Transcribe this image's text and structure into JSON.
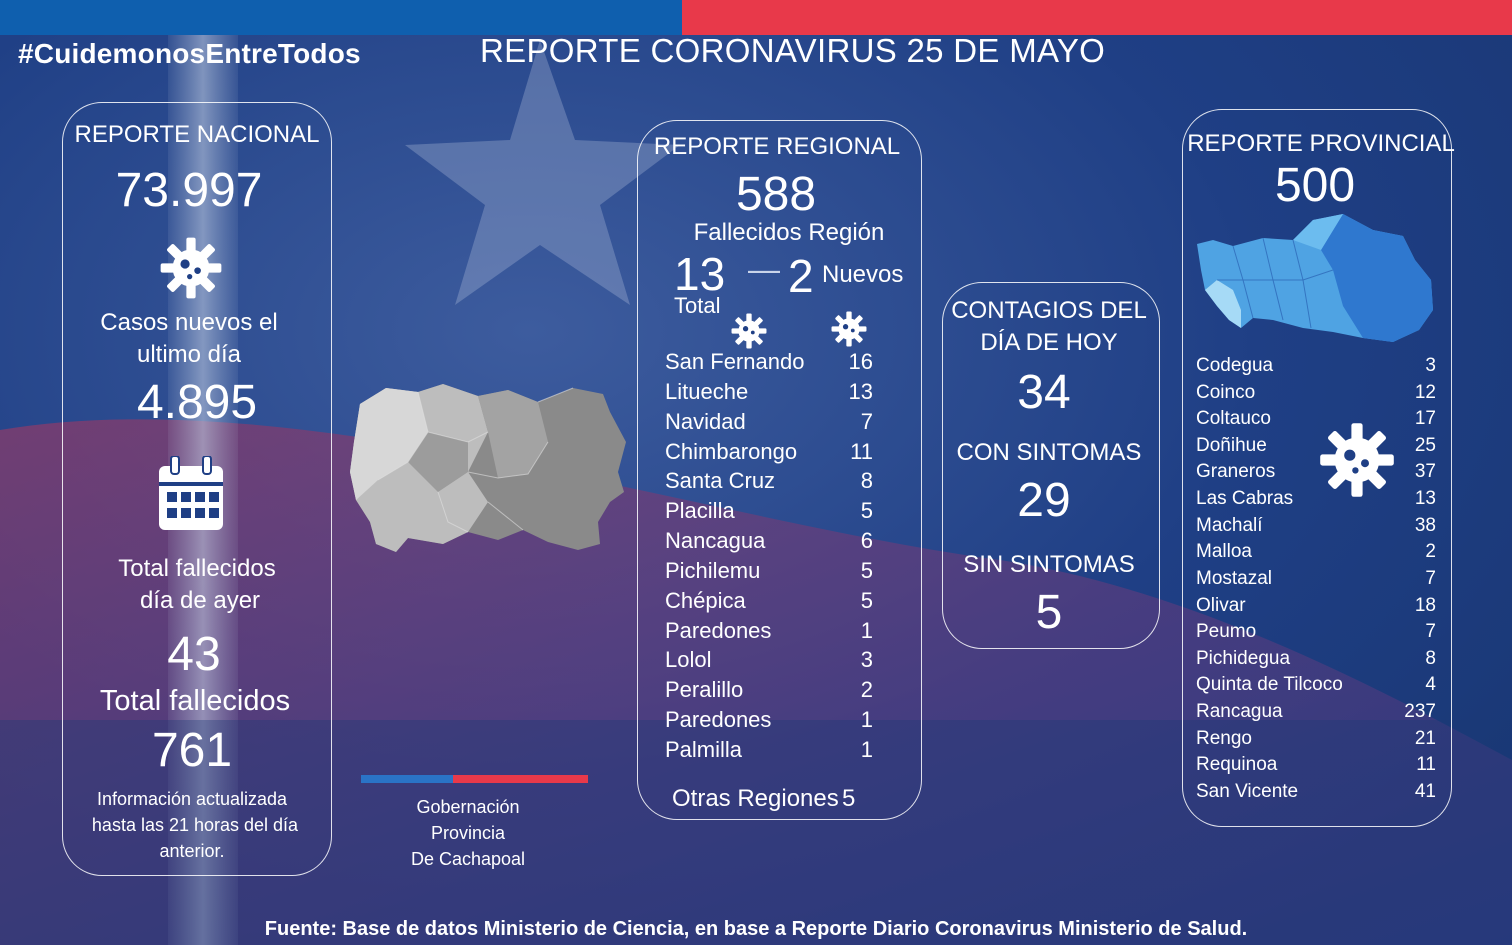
{
  "hashtag": "#CuidemonosEntreTodos",
  "title": "REPORTE CORONAVIRUS 25 DE MAYO",
  "nacional": {
    "heading": "REPORTE NACIONAL",
    "total": "73.997",
    "new_label_1": "Casos nuevos el",
    "new_label_2": "ultimo día",
    "new_cases": "4.895",
    "deaths_yesterday_label_1": "Total fallecidos",
    "deaths_yesterday_label_2": "día de ayer",
    "deaths_yesterday": "43",
    "deaths_total_label": "Total fallecidos",
    "deaths_total": "761",
    "note_1": "Información actualizada",
    "note_2": "hasta las 21 horas del día",
    "note_3": "anterior."
  },
  "regional": {
    "heading": "REPORTE REGIONAL",
    "total": "588",
    "fallecidos_label": "Fallecidos Región",
    "fallecidos_total": "13",
    "dash": "—",
    "fallecidos_nuevos": "2",
    "nuevos_label": "Nuevos",
    "total_label": "Total",
    "rows": [
      {
        "name": "San Fernando",
        "value": "16"
      },
      {
        "name": "Litueche",
        "value": "13"
      },
      {
        "name": "Navidad",
        "value": "7"
      },
      {
        "name": "Chimbarongo",
        "value": "11"
      },
      {
        "name": "Santa Cruz",
        "value": "8"
      },
      {
        "name": "Placilla",
        "value": "5"
      },
      {
        "name": "Nancagua",
        "value": "6"
      },
      {
        "name": "Pichilemu",
        "value": "5"
      },
      {
        "name": "Chépica",
        "value": "5"
      },
      {
        "name": "Paredones",
        "value": "1"
      },
      {
        "name": "Lolol",
        "value": "3"
      },
      {
        "name": "Peralillo",
        "value": "2"
      },
      {
        "name": "Paredones",
        "value": "1"
      },
      {
        "name": "Palmilla",
        "value": "1"
      }
    ],
    "otras_label": "Otras Regiones",
    "otras_value": "5"
  },
  "contagios": {
    "heading_1": "CONTAGIOS DEL",
    "heading_2": "DÍA DE HOY",
    "hoy": "34",
    "con_label": "CON SINTOMAS",
    "con": "29",
    "sin_label": "SIN SINTOMAS",
    "sin": "5"
  },
  "provincial": {
    "heading": "REPORTE PROVINCIAL",
    "total": "500",
    "rows": [
      {
        "name": "Codegua",
        "value": "3"
      },
      {
        "name": "Coinco",
        "value": "12"
      },
      {
        "name": "Coltauco",
        "value": "17"
      },
      {
        "name": "Doñihue",
        "value": "25"
      },
      {
        "name": "Graneros",
        "value": "37"
      },
      {
        "name": "Las Cabras",
        "value": "13"
      },
      {
        "name": "Machalí",
        "value": "38"
      },
      {
        "name": "Malloa",
        "value": "2"
      },
      {
        "name": "Mostazal",
        "value": "7"
      },
      {
        "name": "Olivar",
        "value": "18"
      },
      {
        "name": "Peumo",
        "value": "7"
      },
      {
        "name": "Pichidegua",
        "value": "8"
      },
      {
        "name": "Quinta de Tilcoco",
        "value": "4"
      },
      {
        "name": "Rancagua",
        "value": "237"
      },
      {
        "name": "Rengo",
        "value": "21"
      },
      {
        "name": "Requinoa",
        "value": "11"
      },
      {
        "name": "San Vicente",
        "value": "41"
      }
    ]
  },
  "gobernacion": {
    "line1": "Gobernación",
    "line2": "Provincia",
    "line3": "De Cachapoal"
  },
  "footer": "Fuente: Base de datos Ministerio de Ciencia, en base a Reporte Diario Coronavirus Ministerio de Salud.",
  "icons": {
    "virus": "virus-icon",
    "calendar": "calendar-icon"
  },
  "colors": {
    "background": "#1a3a7a",
    "top_blue": "#0f5fae",
    "top_red": "#e8394a"
  }
}
